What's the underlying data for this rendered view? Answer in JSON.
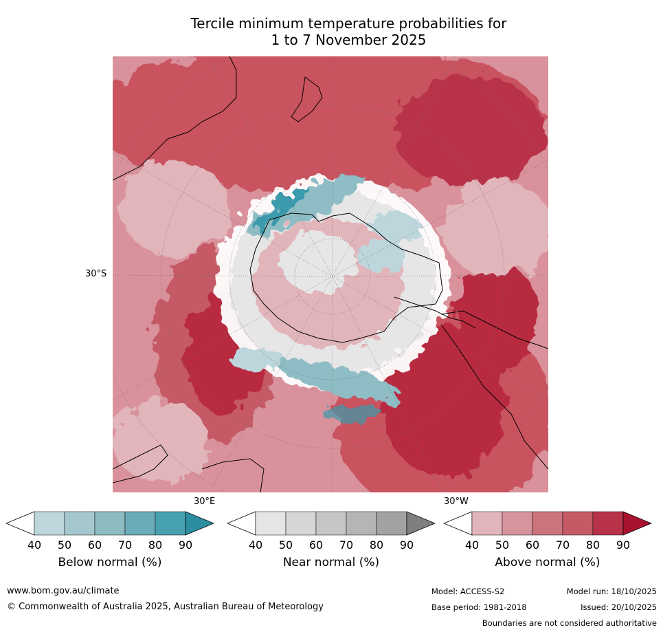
{
  "title": {
    "line1": "Tercile minimum temperature probabilities for",
    "line2": "1 to 7 November 2025"
  },
  "map": {
    "projection": "south-polar",
    "lat_label": "30°S",
    "lon_labels": {
      "east": "30°E",
      "west": "30°W"
    },
    "colors": {
      "ocean_base": "#d9929b",
      "warm_dark": "#b8293f",
      "warm_mid": "#c9525f",
      "warm_light": "#e2b5bb",
      "near_light": "#e6e6e6",
      "near_mid": "#c9c9c9",
      "cool_light": "#bcd6dc",
      "cool_mid": "#8fbdc5",
      "cool_dark": "#3a9aab",
      "coast": "#000000"
    }
  },
  "colorbars": [
    {
      "label": "Below normal (%)",
      "ticks": [
        "40",
        "50",
        "60",
        "70",
        "80",
        "90"
      ],
      "colors": [
        "#ffffff",
        "#bcd6dc",
        "#a5c8ce",
        "#8cbbc2",
        "#6aacb7",
        "#48a1b1",
        "#2c8ea0"
      ]
    },
    {
      "label": "Near normal (%)",
      "ticks": [
        "40",
        "50",
        "60",
        "70",
        "80",
        "90"
      ],
      "colors": [
        "#ffffff",
        "#e5e5e5",
        "#d6d6d6",
        "#c6c6c6",
        "#b5b5b5",
        "#a2a2a2",
        "#7f7f7f"
      ]
    },
    {
      "label": "Above normal (%)",
      "ticks": [
        "40",
        "50",
        "60",
        "70",
        "80",
        "90"
      ],
      "colors": [
        "#ffffff",
        "#e2b5bb",
        "#d6959c",
        "#cc747e",
        "#c55a66",
        "#b8334a",
        "#a8122e"
      ]
    }
  ],
  "footer": {
    "website": "www.bom.gov.au/climate",
    "copyright": "© Commonwealth of Australia 2025, Australian Bureau of Meteorology",
    "model": "Model: ACCESS-S2",
    "base_period": "Base period: 1981-2018",
    "model_run": "Model run: 18/10/2025",
    "issued": "Issued: 20/10/2025",
    "disclaimer": "Boundaries are not considered authoritative"
  }
}
